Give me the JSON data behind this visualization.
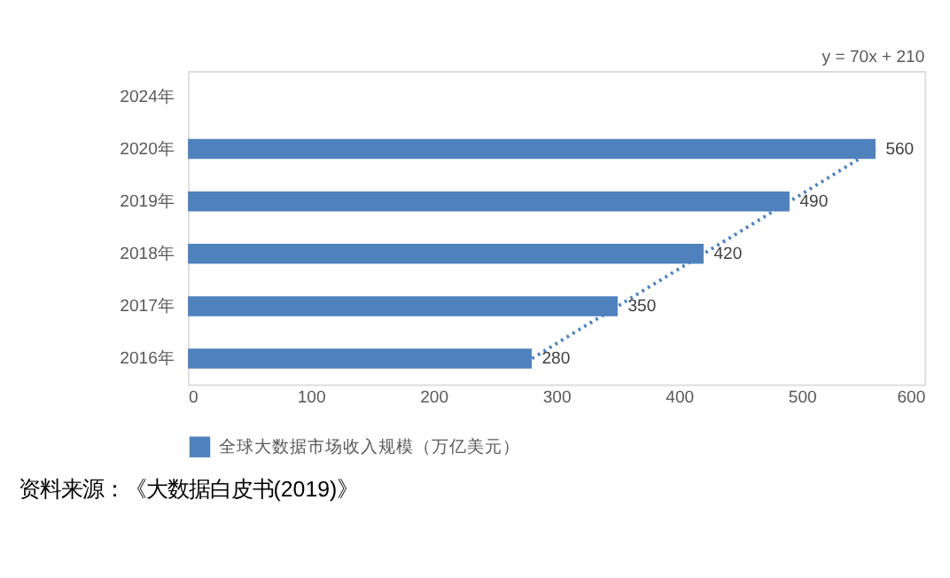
{
  "chart_data": {
    "type": "bar",
    "orientation": "horizontal",
    "categories": [
      "2024年",
      "2020年",
      "2019年",
      "2018年",
      "2017年",
      "2016年"
    ],
    "series": [
      {
        "name": "全球大数据市场收入规模（万亿美元）",
        "color": "#4f81bd",
        "values": [
          null,
          560,
          490,
          420,
          350,
          280
        ],
        "value_labels": [
          null,
          "560",
          "490",
          "420",
          "350",
          "280"
        ]
      },
      {
        "type": "line",
        "color": "#4f81bd",
        "line_style": "dotted",
        "values": [
          null,
          560,
          490,
          420,
          350,
          280
        ]
      }
    ],
    "xlim": [
      0,
      600
    ],
    "xticks": [
      0,
      100,
      200,
      300,
      400,
      500,
      600
    ],
    "legend": "bottom",
    "grid": false,
    "annotations": [
      "y = 70x + 210",
      "资料来源：《大数据白皮书(2019)》"
    ]
  }
}
